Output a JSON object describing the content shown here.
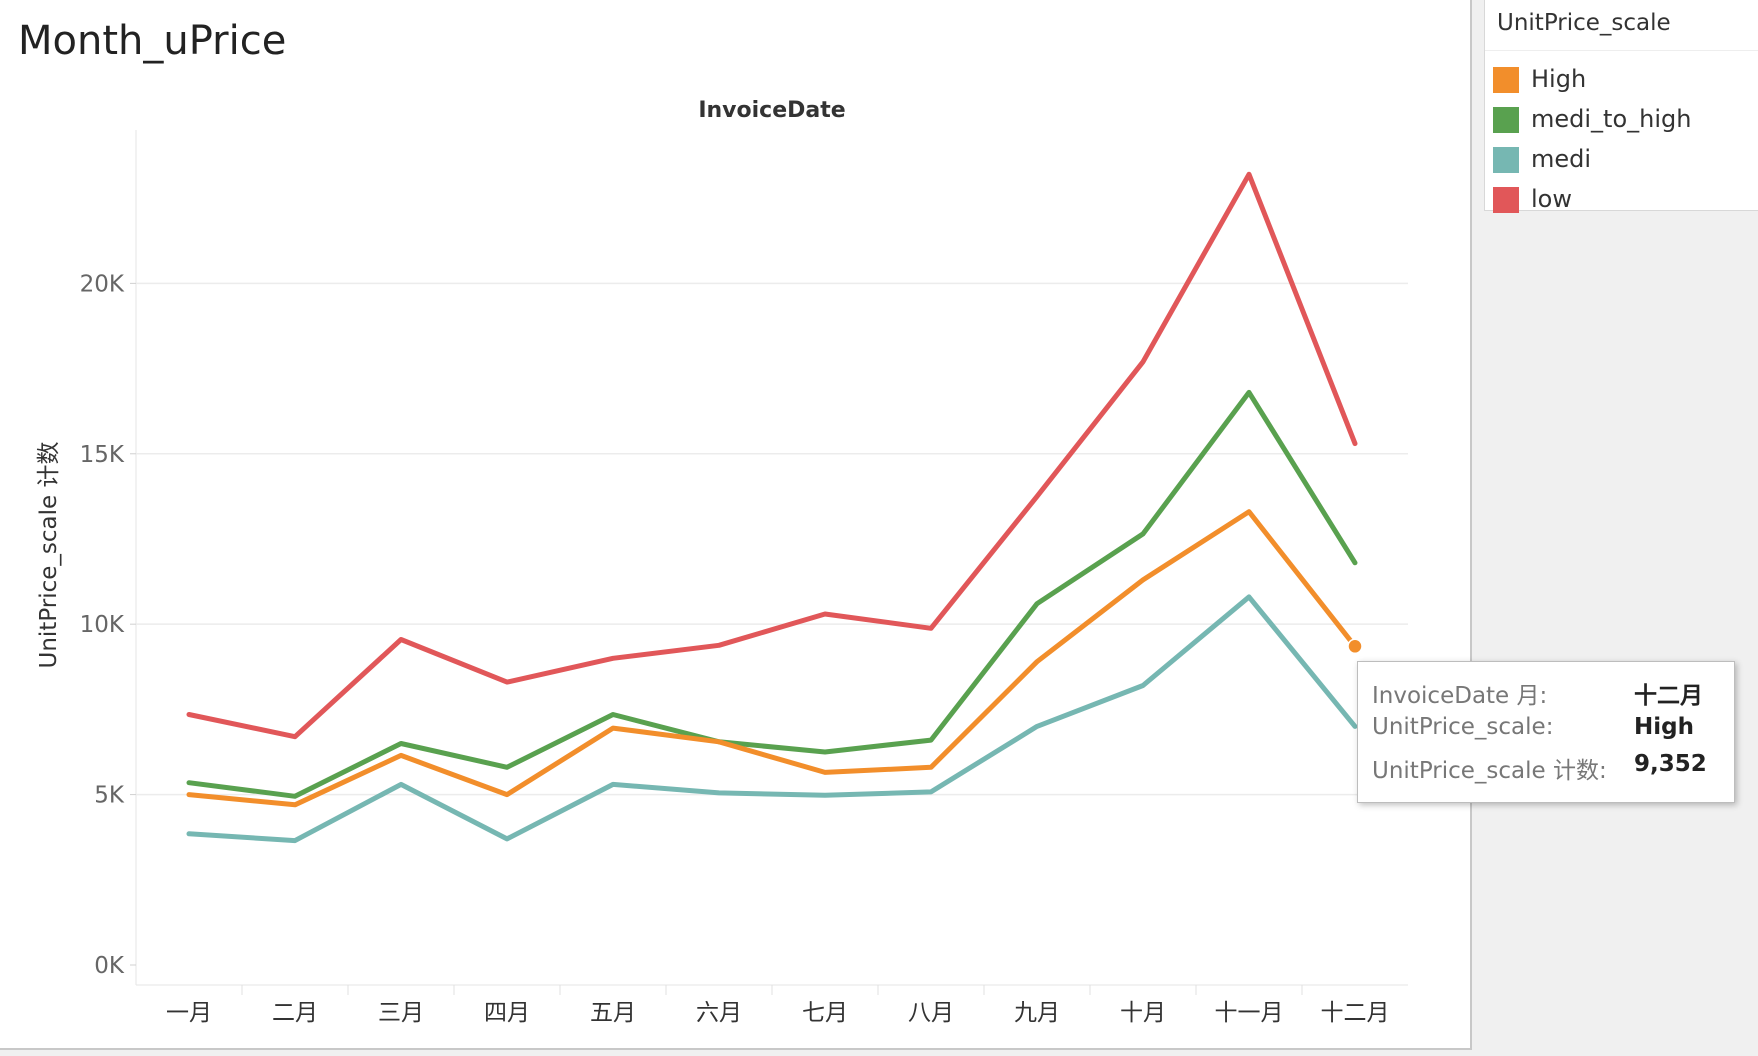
{
  "sheet_title": "Month_uPrice",
  "legend": {
    "title": "UnitPrice_scale",
    "items": [
      {
        "label": "High",
        "color": "#f28e2b"
      },
      {
        "label": "medi_to_high",
        "color": "#59a14f"
      },
      {
        "label": "medi",
        "color": "#76b7b2"
      },
      {
        "label": "low",
        "color": "#e15759"
      }
    ]
  },
  "tooltip": {
    "rows": [
      {
        "key": "InvoiceDate 月:",
        "value": "十二月"
      },
      {
        "key": "UnitPrice_scale:",
        "value": "High"
      },
      {
        "key": "UnitPrice_scale 计数:",
        "value": "9,352"
      }
    ]
  },
  "chart_data": {
    "type": "line",
    "title": "",
    "xlabel": "InvoiceDate",
    "ylabel": "UnitPrice_scale 计数",
    "categories": [
      "一月",
      "二月",
      "三月",
      "四月",
      "五月",
      "六月",
      "七月",
      "八月",
      "九月",
      "十月",
      "十一月",
      "十二月"
    ],
    "yticks": [
      {
        "value": 0,
        "label": "0K"
      },
      {
        "value": 5000,
        "label": "5K"
      },
      {
        "value": 10000,
        "label": "10K"
      },
      {
        "value": 15000,
        "label": "15K"
      },
      {
        "value": 20000,
        "label": "20K"
      }
    ],
    "ylim": [
      0,
      24500
    ],
    "grid": true,
    "legend_position": "top-right",
    "series": [
      {
        "name": "low",
        "color": "#e15759",
        "values": [
          7350,
          6700,
          9550,
          8300,
          9000,
          9380,
          10300,
          9880,
          13750,
          17700,
          23200,
          15300
        ]
      },
      {
        "name": "medi_to_high",
        "color": "#59a14f",
        "values": [
          5350,
          4950,
          6500,
          5800,
          7350,
          6550,
          6250,
          6600,
          10600,
          12650,
          16800,
          11800
        ]
      },
      {
        "name": "High",
        "color": "#f28e2b",
        "values": [
          5000,
          4700,
          6150,
          5000,
          6950,
          6550,
          5650,
          5800,
          8900,
          11300,
          13300,
          9352
        ]
      },
      {
        "name": "medi",
        "color": "#76b7b2",
        "values": [
          3850,
          3650,
          5300,
          3700,
          5300,
          5050,
          4980,
          5080,
          7000,
          8200,
          10800,
          7000
        ]
      }
    ],
    "highlight": {
      "series": "High",
      "category": "十二月",
      "value": 9352
    }
  }
}
